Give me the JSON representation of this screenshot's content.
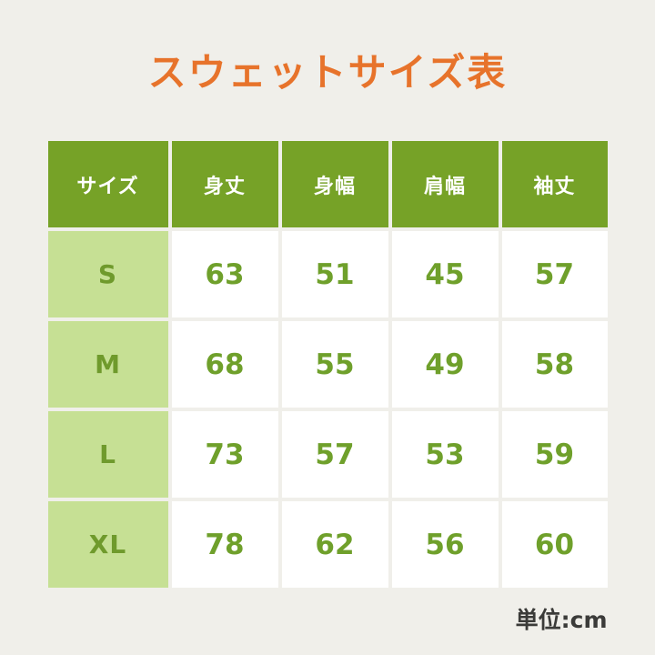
{
  "page": {
    "background_color": "#F0EFEA"
  },
  "title": {
    "text": "スウェットサイズ表",
    "color": "#E7732B"
  },
  "table": {
    "header_bg_color": "#76A227",
    "header_text_color": "#FFFFFF",
    "size_column_bg_color": "#C6E094",
    "value_cell_bg_color": "#FFFFFF",
    "value_text_color": "#6FA02B",
    "columns": [
      "サイズ",
      "身丈",
      "身幅",
      "肩幅",
      "袖丈"
    ],
    "rows": [
      {
        "size": "S",
        "values": [
          "63",
          "51",
          "45",
          "57"
        ]
      },
      {
        "size": "M",
        "values": [
          "68",
          "55",
          "49",
          "58"
        ]
      },
      {
        "size": "L",
        "values": [
          "73",
          "57",
          "53",
          "59"
        ]
      },
      {
        "size": "XL",
        "values": [
          "78",
          "62",
          "56",
          "60"
        ]
      }
    ]
  },
  "footer": {
    "unit_label": "単位:cm",
    "color": "#3B3B39"
  },
  "chart_data": {
    "type": "table",
    "title": "スウェットサイズ表",
    "columns": [
      "サイズ",
      "身丈",
      "身幅",
      "肩幅",
      "袖丈"
    ],
    "rows": [
      [
        "S",
        63,
        51,
        45,
        57
      ],
      [
        "M",
        68,
        55,
        49,
        58
      ],
      [
        "L",
        73,
        57,
        53,
        59
      ],
      [
        "XL",
        78,
        62,
        56,
        60
      ]
    ],
    "unit": "cm"
  }
}
